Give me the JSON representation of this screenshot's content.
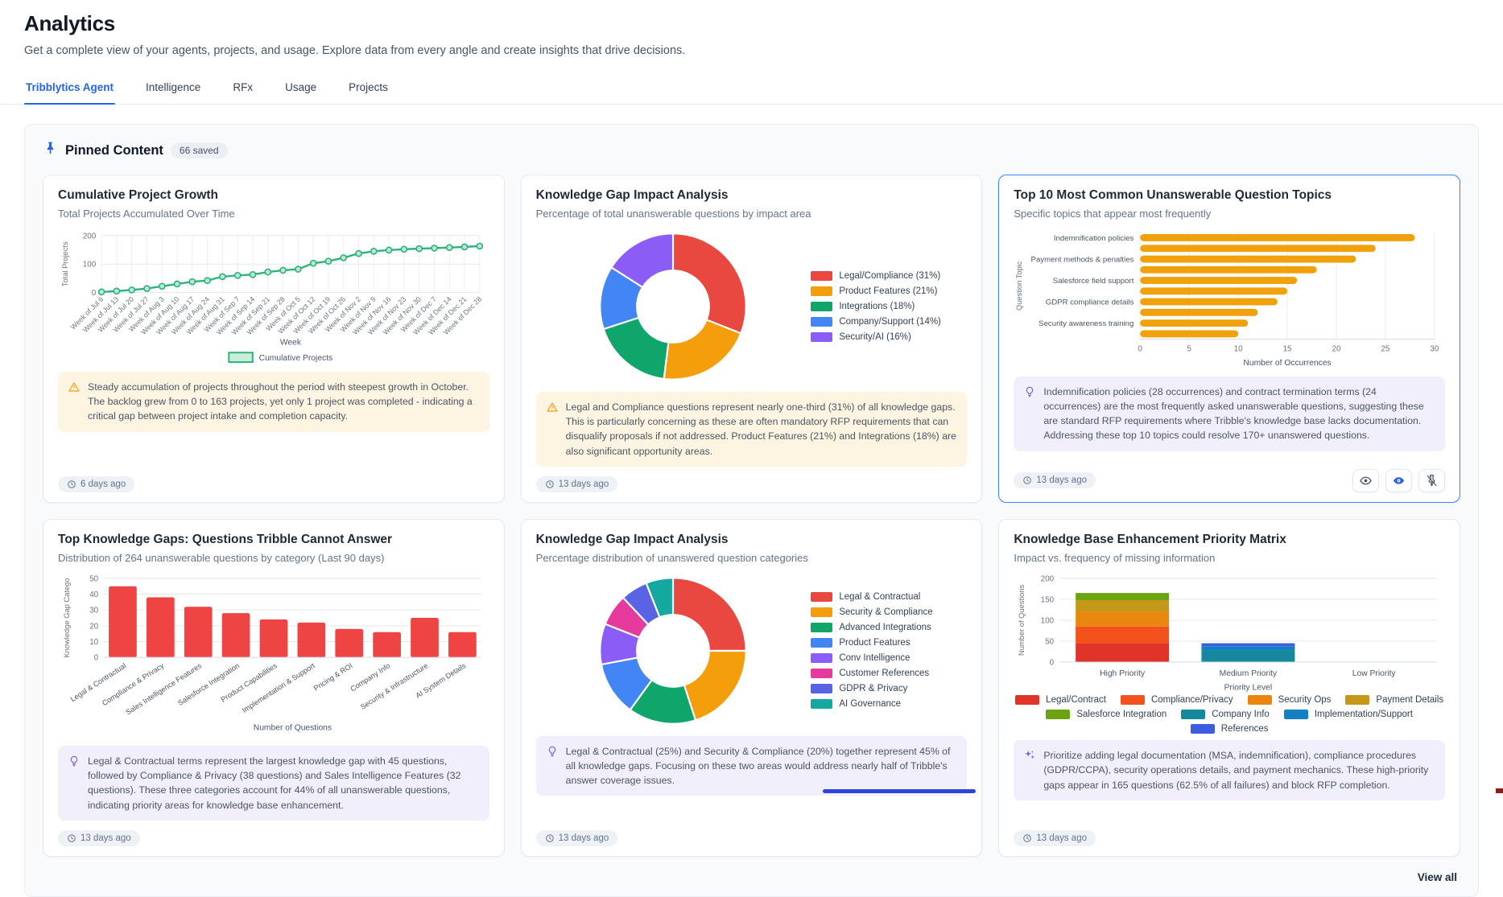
{
  "page": {
    "title": "Analytics",
    "subtitle": "Get a complete view of your agents, projects, and usage. Explore data from every angle and create insights that drive decisions."
  },
  "tabs": [
    {
      "label": "Tribblytics Agent",
      "active": true
    },
    {
      "label": "Intelligence",
      "active": false
    },
    {
      "label": "RFx",
      "active": false
    },
    {
      "label": "Usage",
      "active": false
    },
    {
      "label": "Projects",
      "active": false
    }
  ],
  "pinned": {
    "title": "Pinned Content",
    "badge": "66 saved",
    "view_all": "View all"
  },
  "colors": {
    "accent_blue": "#2563eb",
    "selected_card_border": "#3b82f6",
    "line_green": "#2bb179",
    "bar_orange": "#f0a10c",
    "bar_red": "#ee4444",
    "warning_amber": "#f59e0b",
    "insight_purple": "#7c5ce8"
  },
  "cards": [
    {
      "title": "Cumulative Project Growth",
      "subtitle": "Total Projects Accumulated Over Time",
      "insight": {
        "icon": "warning",
        "text": "Steady accumulation of projects throughout the period with steepest growth in October. The backlog grew from 0 to 163 projects, yet only 1 project was completed - indicating a critical gap between project intake and completion capacity."
      },
      "timestamp": "6 days ago",
      "selected": false
    },
    {
      "title": "Knowledge Gap Impact Analysis",
      "subtitle": "Percentage of total unanswerable questions by impact area",
      "insight": {
        "icon": "warning",
        "text": "Legal and Compliance questions represent nearly one-third (31%) of all knowledge gaps. This is particularly concerning as these are often mandatory RFP requirements that can disqualify proposals if not addressed. Product Features (21%) and Integrations (18%) are also significant opportunity areas."
      },
      "timestamp": "13 days ago",
      "selected": false
    },
    {
      "title": "Top 10 Most Common Unanswerable Question Topics",
      "subtitle": "Specific topics that appear most frequently",
      "insight": {
        "icon": "lightbulb",
        "text": "Indemnification policies (28 occurrences) and contract termination terms (24 occurrences) are the most frequently asked unanswerable questions, suggesting these are standard RFP requirements where Tribble's knowledge base lacks documentation. Addressing these top 10 topics could resolve 170+ unanswered questions."
      },
      "timestamp": "13 days ago",
      "selected": true,
      "actions": [
        {
          "name": "preview",
          "icon": "eye"
        },
        {
          "name": "insight-toggle",
          "icon": "eye-filled"
        },
        {
          "name": "unpin",
          "icon": "pin-off"
        }
      ]
    },
    {
      "title": "Top Knowledge Gaps: Questions Tribble Cannot Answer",
      "subtitle": "Distribution of 264 unanswerable questions by category (Last 90 days)",
      "insight": {
        "icon": "lightbulb",
        "text": "Legal & Contractual terms represent the largest knowledge gap with 45 questions, followed by Compliance & Privacy (38 questions) and Sales Intelligence Features (32 questions). These three categories account for 44% of all unanswerable questions, indicating priority areas for knowledge base enhancement."
      },
      "timestamp": "13 days ago",
      "selected": false
    },
    {
      "title": "Knowledge Gap Impact Analysis",
      "subtitle": "Percentage distribution of unanswered question categories",
      "insight": {
        "icon": "lightbulb",
        "text": "Legal & Contractual (25%) and Security & Compliance (20%) together represent 45% of all knowledge gaps. Focusing on these two areas would address nearly half of Tribble's answer coverage issues."
      },
      "timestamp": "13 days ago",
      "selected": false
    },
    {
      "title": "Knowledge Base Enhancement Priority Matrix",
      "subtitle": "Impact vs. frequency of missing information",
      "insight": {
        "icon": "sparkles",
        "text": "Prioritize adding legal documentation (MSA, indemnification), compliance procedures (GDPR/CCPA), security operations details, and payment mechanics. These high-priority gaps appear in 165 questions (62.5% of all failures) and block RFP completion."
      },
      "timestamp": "13 days ago",
      "selected": false
    }
  ],
  "chart_data": [
    {
      "type": "line",
      "title": "Cumulative Project Growth",
      "x": [
        "Week of Jul 6",
        "Week of Jul 13",
        "Week of Jul 20",
        "Week of Jul 27",
        "Week of Aug 3",
        "Week of Aug 10",
        "Week of Aug 17",
        "Week of Aug 24",
        "Week of Aug 31",
        "Week of Sep 7",
        "Week of Sep 14",
        "Week of Sep 21",
        "Week of Sep 28",
        "Week of Oct 5",
        "Week of Oct 12",
        "Week of Oct 19",
        "Week of Oct 26",
        "Week of Nov 2",
        "Week of Nov 9",
        "Week of Nov 16",
        "Week of Nov 23",
        "Week of Nov 30",
        "Week of Dec 7",
        "Week of Dec 14",
        "Week of Dec 21",
        "Week of Dec 28"
      ],
      "series": [
        {
          "name": "Cumulative Projects",
          "values": [
            2,
            5,
            9,
            14,
            22,
            30,
            38,
            42,
            56,
            60,
            63,
            72,
            78,
            82,
            103,
            110,
            122,
            137,
            145,
            149,
            152,
            154,
            156,
            158,
            160,
            163
          ]
        }
      ],
      "xlabel": "Week",
      "ylabel": "Total Projects",
      "yticks": [
        0,
        100,
        200
      ],
      "ylim": [
        0,
        200
      ],
      "color": "#2bb179",
      "legend_position": "bottom",
      "grid": true
    },
    {
      "type": "donut",
      "title": "Knowledge Gap Impact Analysis",
      "labels": [
        "Legal/Compliance (31%)",
        "Product Features (21%)",
        "Integrations (18%)",
        "Company/Support (14%)",
        "Security/AI (16%)"
      ],
      "values": [
        31,
        21,
        18,
        14,
        16
      ],
      "colors": [
        "#e8483f",
        "#f59e0b",
        "#10a56b",
        "#4285f4",
        "#8b5cf6"
      ],
      "legend_position": "right"
    },
    {
      "type": "bar_horizontal",
      "title": "Top 10 Most Common Unanswerable Question Topics",
      "categories": [
        "Indemnification policies",
        "",
        "Payment methods & penalties",
        "",
        "Salesforce field support",
        "",
        "GDPR compliance details",
        "",
        "Security awareness training",
        ""
      ],
      "values": [
        28,
        24,
        22,
        18,
        16,
        15,
        14,
        12,
        11,
        10
      ],
      "xlabel": "Number of Occurrences",
      "ylabel": "Question Topic",
      "xticks": [
        0,
        5,
        10,
        15,
        20,
        25,
        30
      ],
      "xlim": [
        0,
        30
      ],
      "color": "#f0a10c",
      "grid": true
    },
    {
      "type": "bar",
      "title": "Top Knowledge Gaps: Questions Tribble Cannot Answer",
      "categories": [
        "Legal & Contractual",
        "Compliance & Privacy",
        "Sales Intelligence Features",
        "Salesforce Integration",
        "Product Capabilities",
        "Implementation & Support",
        "Pricing & ROI",
        "Company Info",
        "Security & Infrastructure",
        "AI System Details"
      ],
      "values": [
        45,
        38,
        32,
        28,
        24,
        22,
        18,
        16,
        25,
        16
      ],
      "xlabel": "Number of Questions",
      "ylabel": "Knowledge Gap Catego",
      "yticks": [
        0,
        10,
        20,
        30,
        40,
        50
      ],
      "ylim": [
        0,
        50
      ],
      "color": "#ee4444",
      "grid": true
    },
    {
      "type": "donut",
      "title": "Knowledge Gap Impact Analysis",
      "labels": [
        "Legal & Contractual",
        "Security & Compliance",
        "Advanced Integrations",
        "Product Features",
        "Conv Intelligence",
        "Customer References",
        "GDPR & Privacy",
        "AI Governance"
      ],
      "values": [
        25,
        20,
        15,
        12,
        9,
        7,
        6,
        6
      ],
      "colors": [
        "#e8483f",
        "#f59e0b",
        "#10a56b",
        "#4285f4",
        "#8b5cf6",
        "#e5399d",
        "#5b63e5",
        "#14a8a0"
      ],
      "legend_position": "right"
    },
    {
      "type": "bar_stacked",
      "title": "Knowledge Base Enhancement Priority Matrix",
      "categories": [
        "High Priority",
        "Medium Priority",
        "Low Priority"
      ],
      "series": [
        {
          "name": "Legal/Contract",
          "color": "#e13428",
          "values": [
            45,
            0,
            0
          ]
        },
        {
          "name": "Compliance/Privacy",
          "color": "#f4521c",
          "values": [
            40,
            0,
            0
          ]
        },
        {
          "name": "Security Ops",
          "color": "#e8860d",
          "values": [
            35,
            0,
            0
          ]
        },
        {
          "name": "Payment Details",
          "color": "#c6981a",
          "values": [
            28,
            0,
            0
          ]
        },
        {
          "name": "Salesforce Integration",
          "color": "#6ba410",
          "values": [
            17,
            0,
            0
          ]
        },
        {
          "name": "Company Info",
          "color": "#16889e",
          "values": [
            0,
            28,
            0
          ]
        },
        {
          "name": "Implementation/Support",
          "color": "#1480c4",
          "values": [
            0,
            10,
            0
          ]
        },
        {
          "name": "References",
          "color": "#3c5de0",
          "values": [
            0,
            7,
            0
          ]
        }
      ],
      "xlabel": "Priority Level",
      "ylabel": "Number of Questions",
      "yticks": [
        0,
        50,
        100,
        150,
        200
      ],
      "ylim": [
        0,
        200
      ],
      "legend_position": "bottom",
      "grid": true
    }
  ]
}
